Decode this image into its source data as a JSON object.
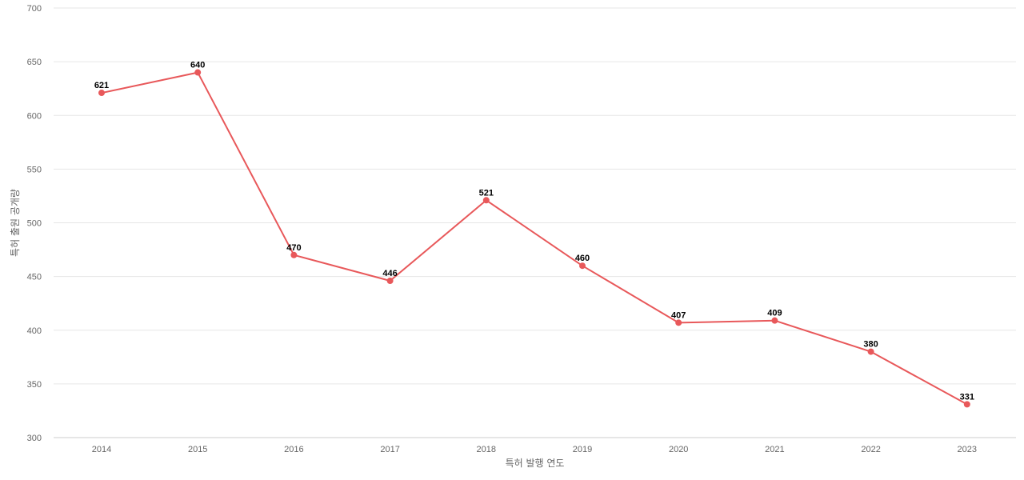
{
  "chart_data": {
    "type": "line",
    "title": "",
    "xlabel": "특허 발행 연도",
    "ylabel": "특허 출원 공개량",
    "categories": [
      "2014",
      "2015",
      "2016",
      "2017",
      "2018",
      "2019",
      "2020",
      "2021",
      "2022",
      "2023"
    ],
    "series": [
      {
        "values": [
          621,
          640,
          470,
          446,
          521,
          460,
          407,
          409,
          380,
          331
        ],
        "color": "#e8585a"
      }
    ],
    "ylim": [
      300,
      700
    ],
    "yticks": [
      300,
      350,
      400,
      450,
      500,
      550,
      600,
      650,
      700
    ],
    "grid": true,
    "data_labels": true,
    "legend": "none"
  }
}
